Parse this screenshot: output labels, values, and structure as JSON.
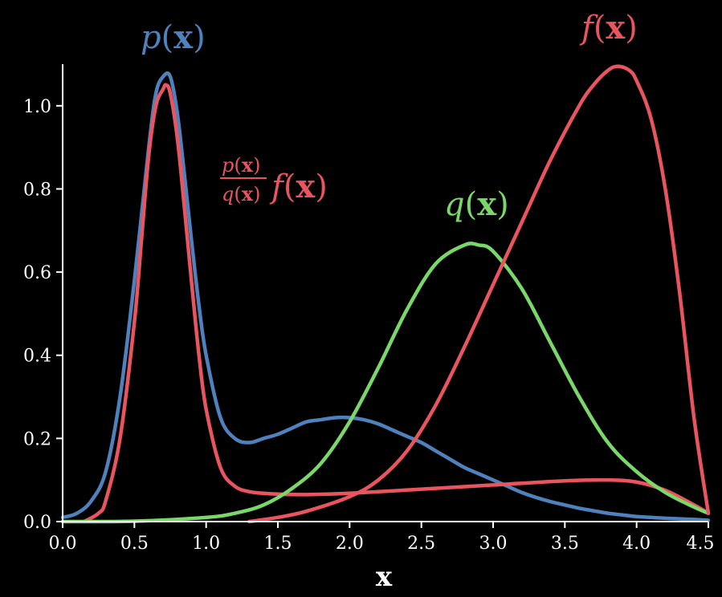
{
  "chart_data": {
    "type": "line",
    "xlabel": "x",
    "ylabel": "",
    "xlim": [
      0.0,
      4.5
    ],
    "ylim": [
      0.0,
      1.1
    ],
    "xticks": [
      "0.0",
      "0.5",
      "1.0",
      "1.5",
      "2.0",
      "2.5",
      "3.0",
      "3.5",
      "4.0",
      "4.5"
    ],
    "yticks": [
      "0.0",
      "0.2",
      "0.4",
      "0.6",
      "0.8",
      "1.0"
    ],
    "series": [
      {
        "name": "p(x)",
        "color": "#4f81bd",
        "x": [
          0.0,
          0.1,
          0.2,
          0.3,
          0.4,
          0.5,
          0.6,
          0.65,
          0.7,
          0.75,
          0.8,
          0.85,
          0.9,
          0.95,
          1.0,
          1.1,
          1.2,
          1.3,
          1.4,
          1.5,
          1.6,
          1.7,
          1.8,
          1.9,
          2.0,
          2.1,
          2.2,
          2.3,
          2.4,
          2.5,
          2.6,
          2.7,
          2.8,
          2.9,
          3.0,
          3.1,
          3.2,
          3.3,
          3.4,
          3.5,
          3.6,
          3.7,
          3.8,
          3.9,
          4.0,
          4.2,
          4.4,
          4.5
        ],
        "y": [
          0.01,
          0.02,
          0.05,
          0.12,
          0.3,
          0.58,
          0.9,
          1.03,
          1.07,
          1.07,
          0.98,
          0.83,
          0.67,
          0.52,
          0.4,
          0.25,
          0.2,
          0.19,
          0.2,
          0.21,
          0.225,
          0.24,
          0.245,
          0.25,
          0.25,
          0.245,
          0.235,
          0.22,
          0.205,
          0.19,
          0.17,
          0.15,
          0.13,
          0.115,
          0.1,
          0.085,
          0.07,
          0.058,
          0.048,
          0.04,
          0.032,
          0.026,
          0.02,
          0.016,
          0.012,
          0.008,
          0.005,
          0.003
        ]
      },
      {
        "name": "p(x)/q(x) f(x)",
        "color": "#e8555f",
        "x": [
          0.15,
          0.25,
          0.3,
          0.4,
          0.5,
          0.55,
          0.6,
          0.65,
          0.7,
          0.72,
          0.75,
          0.8,
          0.85,
          0.9,
          0.95,
          1.0,
          1.1,
          1.2,
          1.3,
          1.4,
          1.5,
          1.7,
          2.0,
          2.5,
          3.0,
          3.5,
          3.8,
          4.0,
          4.2,
          4.4,
          4.5
        ],
        "y": [
          0.0,
          0.02,
          0.05,
          0.2,
          0.48,
          0.68,
          0.88,
          1.0,
          1.04,
          1.05,
          1.03,
          0.92,
          0.75,
          0.57,
          0.4,
          0.27,
          0.13,
          0.085,
          0.072,
          0.068,
          0.066,
          0.065,
          0.068,
          0.078,
          0.088,
          0.098,
          0.1,
          0.095,
          0.075,
          0.04,
          0.02
        ]
      },
      {
        "name": "q(x)",
        "color": "#7ad86a",
        "x": [
          0.0,
          0.5,
          1.0,
          1.2,
          1.4,
          1.6,
          1.8,
          2.0,
          2.2,
          2.4,
          2.6,
          2.8,
          2.9,
          3.0,
          3.2,
          3.4,
          3.6,
          3.8,
          4.0,
          4.2,
          4.4,
          4.5
        ],
        "y": [
          0.0,
          0.001,
          0.01,
          0.02,
          0.04,
          0.08,
          0.14,
          0.24,
          0.37,
          0.51,
          0.62,
          0.665,
          0.665,
          0.65,
          0.56,
          0.43,
          0.3,
          0.19,
          0.12,
          0.07,
          0.035,
          0.02
        ]
      },
      {
        "name": "f(x)",
        "color": "#e8555f",
        "x": [
          1.3,
          1.5,
          1.7,
          2.0,
          2.2,
          2.4,
          2.6,
          2.8,
          3.0,
          3.2,
          3.4,
          3.6,
          3.7,
          3.8,
          3.87,
          3.95,
          4.0,
          4.1,
          4.2,
          4.3,
          4.4,
          4.5
        ],
        "y": [
          0.0,
          0.01,
          0.025,
          0.06,
          0.1,
          0.17,
          0.28,
          0.42,
          0.57,
          0.72,
          0.87,
          1.0,
          1.05,
          1.085,
          1.095,
          1.085,
          1.06,
          0.97,
          0.8,
          0.55,
          0.25,
          0.02
        ]
      }
    ],
    "annotations": [
      {
        "series": "p(x)",
        "color": "#4f81bd"
      },
      {
        "series": "p(x)/q(x) f(x)",
        "color": "#e8555f"
      },
      {
        "series": "q(x)",
        "color": "#7ad86a"
      },
      {
        "series": "f(x)",
        "color": "#e8555f"
      }
    ]
  }
}
